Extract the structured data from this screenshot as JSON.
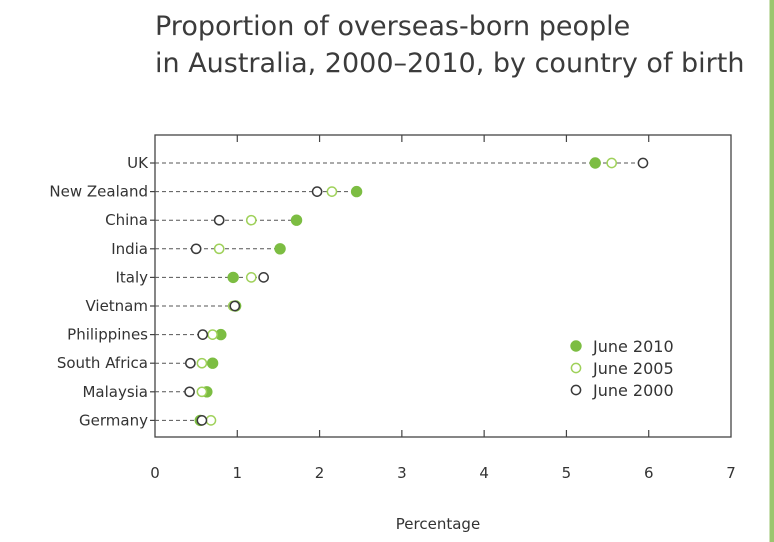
{
  "chart_data": {
    "type": "scatter",
    "subtype": "dot-plot",
    "title_lines": [
      "Proportion of overseas-born people",
      "in Australia, 2000–2010, by country of birth"
    ],
    "xlabel": "Percentage",
    "ylabel": "",
    "xlim": [
      0,
      7
    ],
    "xticks": [
      0,
      1,
      2,
      3,
      4,
      5,
      6,
      7
    ],
    "xtick_labels": [
      "0",
      "1",
      "2",
      "3",
      "4",
      "5",
      "6",
      "7"
    ],
    "grid": false,
    "legend_position": "right",
    "categories": [
      "UK",
      "New Zealand",
      "China",
      "India",
      "Italy",
      "Vietnam",
      "Philippines",
      "South Africa",
      "Malaysia",
      "Germany"
    ],
    "series": [
      {
        "name": "June 2010",
        "marker": "filled",
        "color": "#7cbd42",
        "values": [
          5.35,
          2.45,
          1.72,
          1.52,
          0.95,
          0.98,
          0.8,
          0.7,
          0.63,
          0.55
        ]
      },
      {
        "name": "June 2005",
        "marker": "open",
        "color": "#9fd15a",
        "values": [
          5.55,
          2.15,
          1.17,
          0.78,
          1.17,
          0.95,
          0.7,
          0.57,
          0.57,
          0.68
        ]
      },
      {
        "name": "June 2000",
        "marker": "open",
        "color": "#3a3a3a",
        "values": [
          5.93,
          1.97,
          0.78,
          0.5,
          1.32,
          0.97,
          0.58,
          0.43,
          0.42,
          0.57
        ]
      }
    ]
  }
}
